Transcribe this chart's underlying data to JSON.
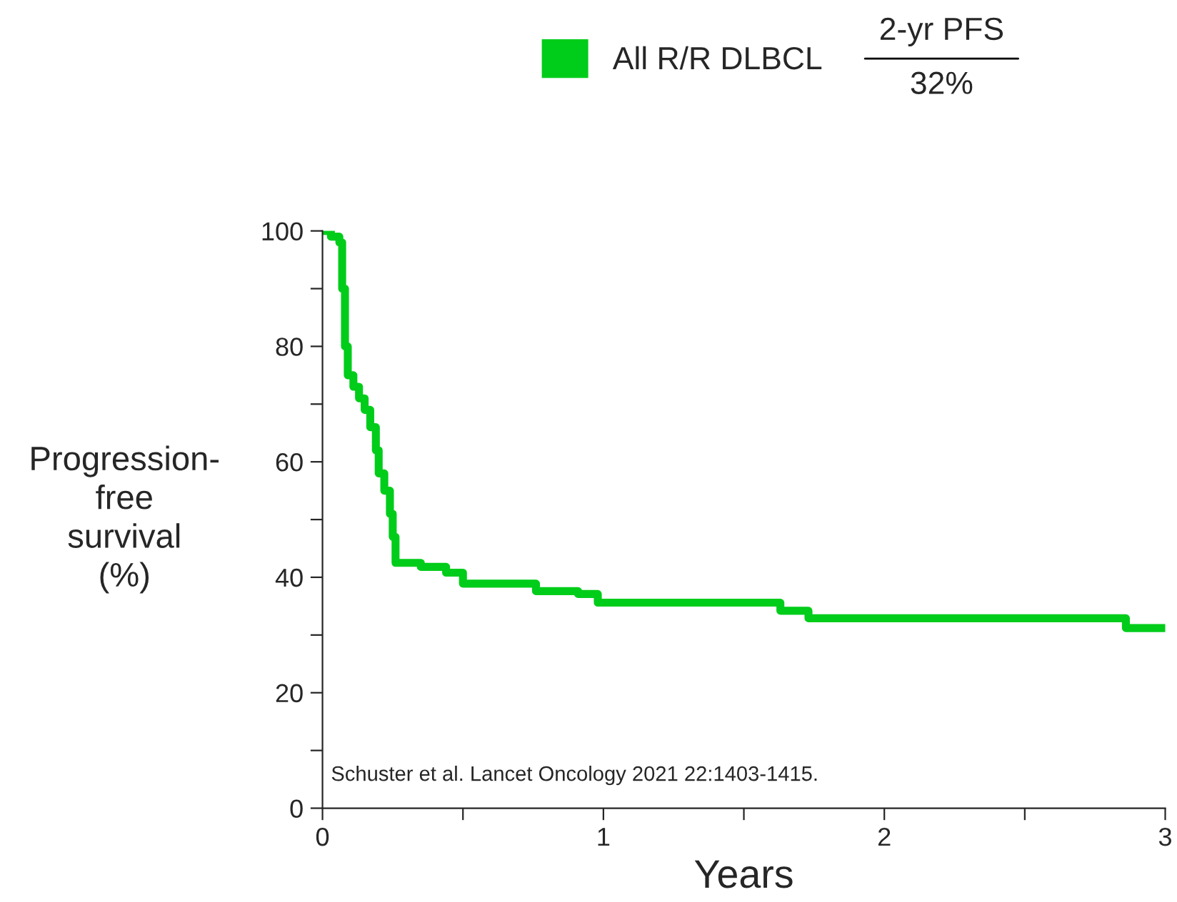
{
  "chart_data": {
    "type": "step",
    "xlabel": "Years",
    "ylabel": "Progression-\nfree\nsurvival\n(%)",
    "x": [
      0,
      0.03,
      0.06,
      0.07,
      0.08,
      0.09,
      0.11,
      0.13,
      0.15,
      0.17,
      0.19,
      0.2,
      0.22,
      0.24,
      0.25,
      0.26,
      0.35,
      0.44,
      0.5,
      0.76,
      0.91,
      0.98,
      1.63,
      1.73,
      2.86,
      3.0
    ],
    "series": [
      {
        "name": "All R/R DLBCL",
        "color": "#00cc1a",
        "values": [
          100,
          99,
          98,
          90,
          80,
          75,
          73,
          71,
          69,
          66,
          62,
          58,
          55,
          51,
          47,
          42.5,
          41.8,
          40.8,
          38.9,
          37.6,
          37.1,
          35.6,
          34.2,
          32.9,
          31.2,
          31.2
        ]
      }
    ],
    "xlim": [
      0,
      3
    ],
    "xticks": [
      0,
      {
        "value": 0.5,
        "label": null
      },
      1,
      {
        "value": 1.5,
        "label": null
      },
      2,
      {
        "value": 2.5,
        "label": null
      },
      3
    ],
    "ylim": [
      0,
      100
    ],
    "yticks": [
      0,
      {
        "value": 10,
        "label": null
      },
      20,
      {
        "value": 30,
        "label": null
      },
      40,
      {
        "value": 50,
        "label": null
      },
      60,
      {
        "value": 70,
        "label": null
      },
      80,
      {
        "value": 90,
        "label": null
      },
      100
    ],
    "annotations": [
      "2-yr PFS",
      "32%",
      "Schuster et al. Lancet Oncology 2021 22:1403-1415."
    ],
    "legend": "top",
    "grid": false,
    "line_style": "solid",
    "marker": "none"
  }
}
